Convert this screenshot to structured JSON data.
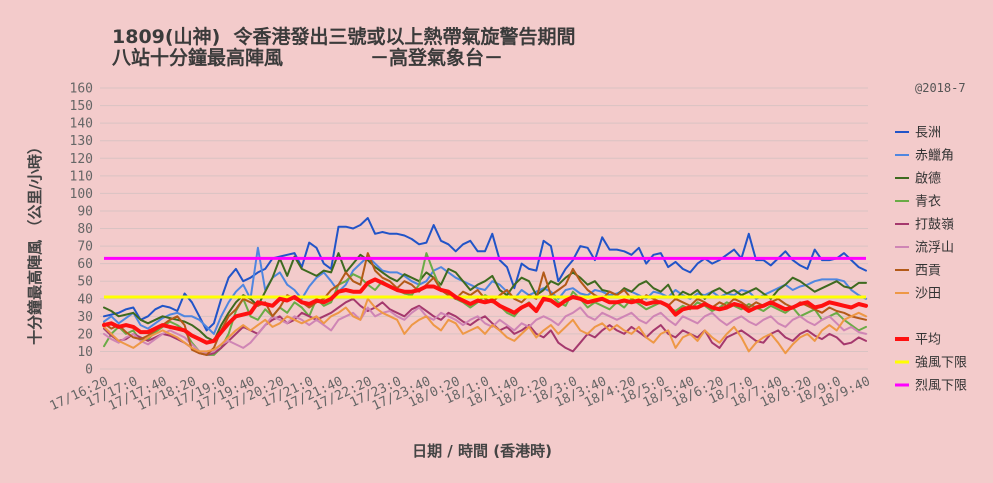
{
  "chart_data": {
    "type": "line",
    "title": [
      "1809(山神)  令香港發出三號或以上熱帶氣旋警告期間",
      "八站十分鐘最高陣風",
      "－高登氣象台－"
    ],
    "note": "@2018-7",
    "xlabel": "日期 / 時間 (香港時)",
    "ylabel": "十分鐘最高陣風 （公里/小時）",
    "ylim": [
      0,
      160
    ],
    "y_ticks": [
      0,
      10,
      20,
      30,
      40,
      50,
      60,
      70,
      80,
      90,
      100,
      110,
      120,
      130,
      140,
      150,
      160
    ],
    "x_tick_labels": [
      "17/16:20",
      "17/17:0",
      "17/17:40",
      "17/18:20",
      "17/19:0",
      "17/19:40",
      "17/20:20",
      "17/21:0",
      "17/21:40",
      "17/22:20",
      "17/23:0",
      "17/23:40",
      "18/0:20",
      "18/1:0",
      "18/1:40",
      "18/2:20",
      "18/3:0",
      "18/3:40",
      "18/4:20",
      "18/5:0",
      "18/5:40",
      "18/6:20",
      "18/7:0",
      "18/7:40",
      "18/8:20",
      "18/9:0",
      "18/9:40"
    ],
    "grid": true,
    "legend": "right",
    "series": [
      {
        "name": "長洲",
        "color": "#2154c8",
        "values": [
          30,
          31,
          32,
          34,
          35,
          28,
          30,
          34,
          36,
          35,
          33,
          43,
          38,
          30,
          22,
          26,
          40,
          52,
          57,
          50,
          52,
          55,
          57,
          63,
          64,
          65,
          66,
          58,
          72,
          69,
          60,
          57,
          81,
          81,
          80,
          82,
          86,
          77,
          78,
          77,
          77,
          76,
          74,
          71,
          72,
          82,
          73,
          71,
          67,
          71,
          73,
          67,
          67,
          77,
          62,
          58,
          46,
          60,
          57,
          56,
          73,
          70,
          50,
          57,
          62,
          70,
          69,
          62,
          75,
          68,
          68,
          67,
          65,
          69,
          60,
          65,
          66,
          58,
          61,
          57,
          55,
          60,
          63,
          60,
          62,
          65,
          68,
          63,
          77,
          62,
          62,
          59,
          63,
          67,
          62,
          59,
          57,
          68,
          62,
          62,
          63,
          66,
          62,
          58,
          56
        ]
      },
      {
        "name": "赤鱲角",
        "color": "#4f86e0",
        "values": [
          27,
          30,
          26,
          29,
          32,
          25,
          23,
          26,
          29,
          31,
          32,
          30,
          30,
          28,
          24,
          20,
          30,
          38,
          44,
          48,
          40,
          69,
          45,
          52,
          55,
          48,
          45,
          40,
          47,
          52,
          55,
          50,
          44,
          48,
          56,
          60,
          64,
          60,
          56,
          55,
          55,
          53,
          50,
          48,
          50,
          56,
          58,
          55,
          52,
          50,
          48,
          46,
          45,
          50,
          48,
          44,
          40,
          45,
          42,
          44,
          46,
          44,
          40,
          45,
          46,
          43,
          42,
          45,
          44,
          42,
          43,
          45,
          44,
          42,
          40,
          44,
          43,
          41,
          45,
          42,
          40,
          43,
          42,
          44,
          41,
          43,
          42,
          45,
          44,
          40,
          42,
          44,
          46,
          48,
          45,
          47,
          48,
          50,
          51,
          51,
          51,
          50,
          45,
          42,
          40
        ]
      },
      {
        "name": "啟德",
        "color": "#3e6a1f",
        "values": [
          35,
          33,
          30,
          31,
          32,
          28,
          26,
          28,
          30,
          29,
          28,
          27,
          25,
          22,
          18,
          16,
          25,
          32,
          38,
          42,
          40,
          36,
          44,
          52,
          63,
          53,
          64,
          57,
          55,
          53,
          56,
          55,
          66,
          55,
          60,
          65,
          62,
          58,
          55,
          52,
          50,
          54,
          52,
          50,
          55,
          52,
          48,
          57,
          55,
          50,
          45,
          48,
          50,
          53,
          45,
          42,
          48,
          52,
          50,
          42,
          45,
          50,
          48,
          52,
          55,
          52,
          48,
          50,
          45,
          44,
          42,
          46,
          44,
          48,
          50,
          46,
          44,
          48,
          40,
          44,
          42,
          45,
          40,
          44,
          46,
          43,
          45,
          42,
          44,
          46,
          43,
          40,
          45,
          48,
          52,
          50,
          47,
          44,
          46,
          48,
          50,
          47,
          46,
          49,
          49
        ]
      },
      {
        "name": "青衣",
        "color": "#6aab46",
        "values": [
          13,
          20,
          24,
          20,
          22,
          16,
          17,
          21,
          24,
          27,
          25,
          22,
          15,
          10,
          8,
          8,
          12,
          20,
          33,
          40,
          30,
          28,
          34,
          30,
          35,
          32,
          38,
          35,
          30,
          40,
          36,
          38,
          48,
          50,
          54,
          52,
          48,
          45,
          50,
          47,
          45,
          43,
          42,
          48,
          66,
          55,
          45,
          42,
          40,
          38,
          35,
          38,
          42,
          40,
          36,
          32,
          30,
          35,
          38,
          33,
          40,
          42,
          38,
          36,
          44,
          40,
          35,
          38,
          36,
          34,
          38,
          35,
          40,
          37,
          34,
          36,
          38,
          35,
          33,
          36,
          34,
          38,
          36,
          33,
          35,
          38,
          36,
          34,
          37,
          35,
          33,
          36,
          34,
          32,
          35,
          30,
          32,
          34,
          28,
          30,
          32,
          28,
          25,
          22,
          24
        ]
      },
      {
        "name": "打鼓嶺",
        "color": "#a5386d",
        "values": [
          23,
          19,
          16,
          17,
          20,
          18,
          16,
          18,
          20,
          19,
          17,
          15,
          12,
          9,
          8,
          9,
          12,
          16,
          20,
          24,
          22,
          20,
          25,
          28,
          30,
          26,
          28,
          32,
          30,
          28,
          30,
          32,
          35,
          38,
          40,
          36,
          33,
          35,
          38,
          34,
          32,
          30,
          34,
          36,
          33,
          30,
          28,
          32,
          30,
          27,
          25,
          28,
          30,
          26,
          22,
          24,
          20,
          22,
          25,
          20,
          18,
          22,
          15,
          12,
          10,
          15,
          20,
          18,
          22,
          25,
          22,
          20,
          24,
          21,
          18,
          22,
          25,
          20,
          18,
          22,
          20,
          18,
          22,
          15,
          12,
          18,
          20,
          22,
          19,
          16,
          15,
          20,
          22,
          18,
          16,
          20,
          22,
          19,
          17,
          20,
          18,
          14,
          15,
          18,
          16
        ]
      },
      {
        "name": "流浮山",
        "color": "#cf85b5",
        "values": [
          20,
          17,
          15,
          18,
          20,
          16,
          14,
          17,
          20,
          22,
          20,
          18,
          14,
          10,
          9,
          10,
          14,
          16,
          14,
          12,
          15,
          20,
          25,
          30,
          28,
          26,
          30,
          28,
          25,
          28,
          25,
          22,
          28,
          30,
          32,
          28,
          35,
          30,
          32,
          33,
          30,
          28,
          32,
          35,
          30,
          28,
          32,
          30,
          28,
          25,
          28,
          30,
          26,
          24,
          28,
          25,
          22,
          26,
          24,
          28,
          30,
          28,
          25,
          30,
          32,
          35,
          30,
          28,
          32,
          30,
          28,
          30,
          32,
          28,
          26,
          30,
          32,
          28,
          25,
          30,
          28,
          26,
          30,
          32,
          28,
          25,
          28,
          30,
          27,
          25,
          28,
          30,
          26,
          24,
          28,
          30,
          27,
          25,
          28,
          30,
          26,
          22,
          24,
          21,
          20
        ]
      },
      {
        "name": "西貢",
        "color": "#b35a18",
        "values": [
          26,
          23,
          25,
          21,
          18,
          17,
          19,
          22,
          25,
          28,
          30,
          25,
          11,
          9,
          8,
          12,
          22,
          30,
          34,
          40,
          38,
          36,
          38,
          30,
          35,
          42,
          40,
          38,
          35,
          38,
          40,
          45,
          48,
          55,
          50,
          48,
          66,
          56,
          52,
          50,
          46,
          50,
          48,
          44,
          48,
          52,
          45,
          42,
          40,
          44,
          42,
          45,
          40,
          38,
          42,
          45,
          40,
          38,
          42,
          40,
          55,
          42,
          45,
          48,
          57,
          50,
          45,
          42,
          40,
          44,
          42,
          45,
          40,
          38,
          42,
          40,
          38,
          36,
          40,
          38,
          36,
          40,
          38,
          35,
          38,
          36,
          40,
          38,
          35,
          38,
          36,
          38,
          40,
          37,
          35,
          38,
          36,
          34,
          32,
          35,
          33,
          32,
          30,
          29,
          28
        ]
      },
      {
        "name": "沙田",
        "color": "#ee9846",
        "values": [
          24,
          20,
          16,
          14,
          12,
          15,
          18,
          20,
          22,
          20,
          18,
          15,
          12,
          10,
          10,
          11,
          14,
          18,
          22,
          25,
          22,
          25,
          28,
          24,
          26,
          30,
          28,
          26,
          28,
          30,
          26,
          30,
          32,
          35,
          30,
          28,
          40,
          35,
          32,
          30,
          28,
          20,
          25,
          28,
          30,
          25,
          22,
          28,
          26,
          20,
          22,
          24,
          20,
          25,
          22,
          18,
          16,
          20,
          24,
          18,
          22,
          25,
          20,
          24,
          28,
          22,
          20,
          24,
          26,
          22,
          25,
          22,
          20,
          24,
          18,
          15,
          20,
          22,
          12,
          18,
          20,
          16,
          22,
          18,
          15,
          20,
          24,
          18,
          10,
          15,
          18,
          20,
          15,
          9,
          14,
          18,
          20,
          16,
          22,
          25,
          22,
          28,
          30,
          32,
          30
        ]
      }
    ],
    "average": {
      "name": "平均",
      "color": "#ff1010",
      "values": [
        25,
        26,
        24,
        25,
        24,
        21,
        21,
        23,
        25,
        24,
        23,
        22,
        19,
        17,
        15,
        16,
        21,
        26,
        30,
        31,
        32,
        38,
        37,
        36,
        40,
        39,
        41,
        38,
        37,
        39,
        38,
        40,
        44,
        45,
        44,
        44,
        49,
        51,
        49,
        47,
        45,
        44,
        44,
        45,
        47,
        47,
        45,
        44,
        41,
        39,
        37,
        39,
        38,
        39,
        36,
        34,
        32,
        35,
        37,
        33,
        40,
        39,
        36,
        39,
        41,
        40,
        38,
        39,
        40,
        38,
        38,
        39,
        38,
        39,
        37,
        38,
        38,
        36,
        31,
        34,
        35,
        35,
        37,
        35,
        34,
        35,
        37,
        36,
        33,
        35,
        36,
        38,
        36,
        34,
        35,
        37,
        38,
        35,
        36,
        38,
        37,
        36,
        35,
        37,
        36
      ]
    },
    "reference_lines": [
      {
        "name": "強風下限",
        "value": 41,
        "color": "#ffff00"
      },
      {
        "name": "烈風下限",
        "value": 63,
        "color": "#ff00ff"
      }
    ]
  }
}
